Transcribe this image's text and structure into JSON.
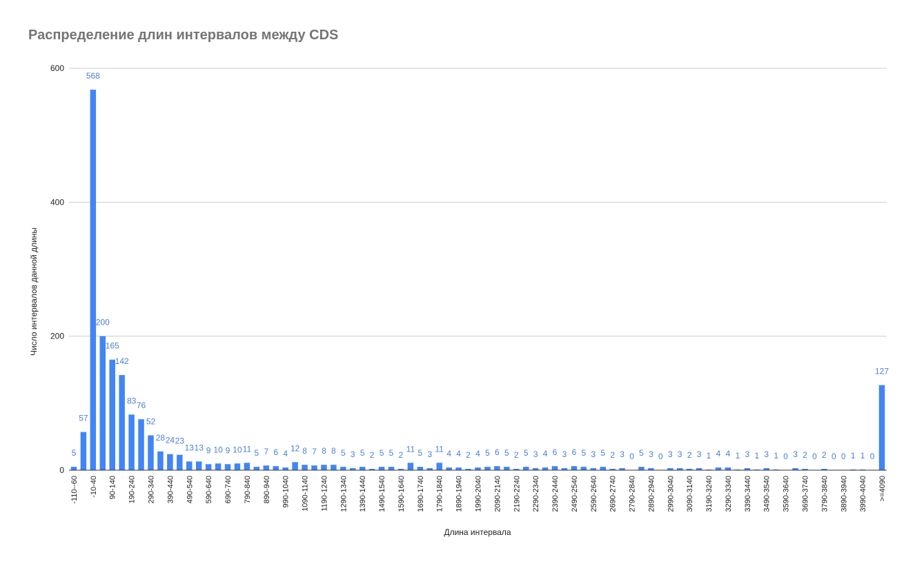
{
  "chart_data": {
    "type": "bar",
    "title": "Распределение длин интервалов между CDS",
    "xlabel": "Длина интервала",
    "ylabel": "Число интервалов данной длины",
    "ylim": [
      0,
      600
    ],
    "yticks": [
      0,
      200,
      400,
      600
    ],
    "grid": true,
    "legend": "none",
    "bar_color": "#4285f4",
    "label_color": "#4a7fd4",
    "categories": [
      "-110--60",
      "-60--10",
      "-10-40",
      "40-90",
      "90-140",
      "140-190",
      "190-240",
      "240-290",
      "290-340",
      "340-390",
      "390-440",
      "440-490",
      "490-540",
      "540-590",
      "590-640",
      "640-690",
      "690-740",
      "740-790",
      "790-840",
      "840-890",
      "890-940",
      "940-990",
      "990-1040",
      "1040-1090",
      "1090-1140",
      "1140-1190",
      "1190-1240",
      "1240-1290",
      "1290-1340",
      "1340-1390",
      "1390-1440",
      "1440-1490",
      "1490-1540",
      "1540-1590",
      "1590-1640",
      "1640-1690",
      "1690-1740",
      "1740-1790",
      "1790-1840",
      "1840-1890",
      "1890-1940",
      "1940-1990",
      "1990-2040",
      "2040-2090",
      "2090-2140",
      "2140-2190",
      "2190-2240",
      "2240-2290",
      "2290-2340",
      "2340-2390",
      "2390-2440",
      "2440-2490",
      "2490-2540",
      "2540-2590",
      "2590-2640",
      "2640-2690",
      "2690-2740",
      "2740-2790",
      "2790-2840",
      "2840-2890",
      "2890-2940",
      "2940-2990",
      "2990-3040",
      "3040-3090",
      "3090-3140",
      "3140-3190",
      "3190-3240",
      "3240-3290",
      "3290-3340",
      "3340-3390",
      "3390-3440",
      "3440-3490",
      "3490-3540",
      "3540-3590",
      "3590-3640",
      "3640-3690",
      "3690-3740",
      "3740-3790",
      "3790-3840",
      "3840-3890",
      "3890-3940",
      "3940-3990",
      "3990-4040",
      "4040-4090",
      ">=4090"
    ],
    "tick_labels": [
      "-110--60",
      "-10-40",
      "90-140",
      "190-240",
      "290-340",
      "390-440",
      "490-540",
      "590-640",
      "690-740",
      "790-840",
      "890-940",
      "990-1040",
      "1090-1140",
      "1190-1240",
      "1290-1340",
      "1390-1440",
      "1490-1540",
      "1590-1640",
      "1690-1740",
      "1790-1840",
      "1890-1940",
      "1990-2040",
      "2090-2140",
      "2190-2240",
      "2290-2340",
      "2390-2440",
      "2490-2540",
      "2590-2640",
      "2690-2740",
      "2790-2840",
      "2890-2940",
      "2990-3040",
      "3090-3140",
      "3190-3240",
      "3290-3340",
      "3390-3440",
      "3490-3540",
      "3590-3640",
      "3690-3740",
      "3790-3840",
      "3890-3940",
      "3990-4040",
      ">=4090"
    ],
    "values": [
      5,
      57,
      568,
      200,
      165,
      142,
      83,
      76,
      52,
      28,
      24,
      23,
      13,
      13,
      9,
      10,
      9,
      10,
      11,
      5,
      7,
      6,
      4,
      12,
      8,
      7,
      8,
      8,
      5,
      3,
      5,
      2,
      5,
      5,
      2,
      11,
      5,
      3,
      11,
      4,
      4,
      2,
      4,
      5,
      6,
      5,
      2,
      5,
      3,
      4,
      6,
      3,
      6,
      5,
      3,
      5,
      2,
      3,
      0,
      5,
      3,
      0,
      3,
      3,
      2,
      3,
      1,
      4,
      4,
      1,
      3,
      1,
      3,
      1,
      0,
      3,
      2,
      0,
      2,
      0,
      0,
      1,
      1,
      0,
      127
    ]
  }
}
